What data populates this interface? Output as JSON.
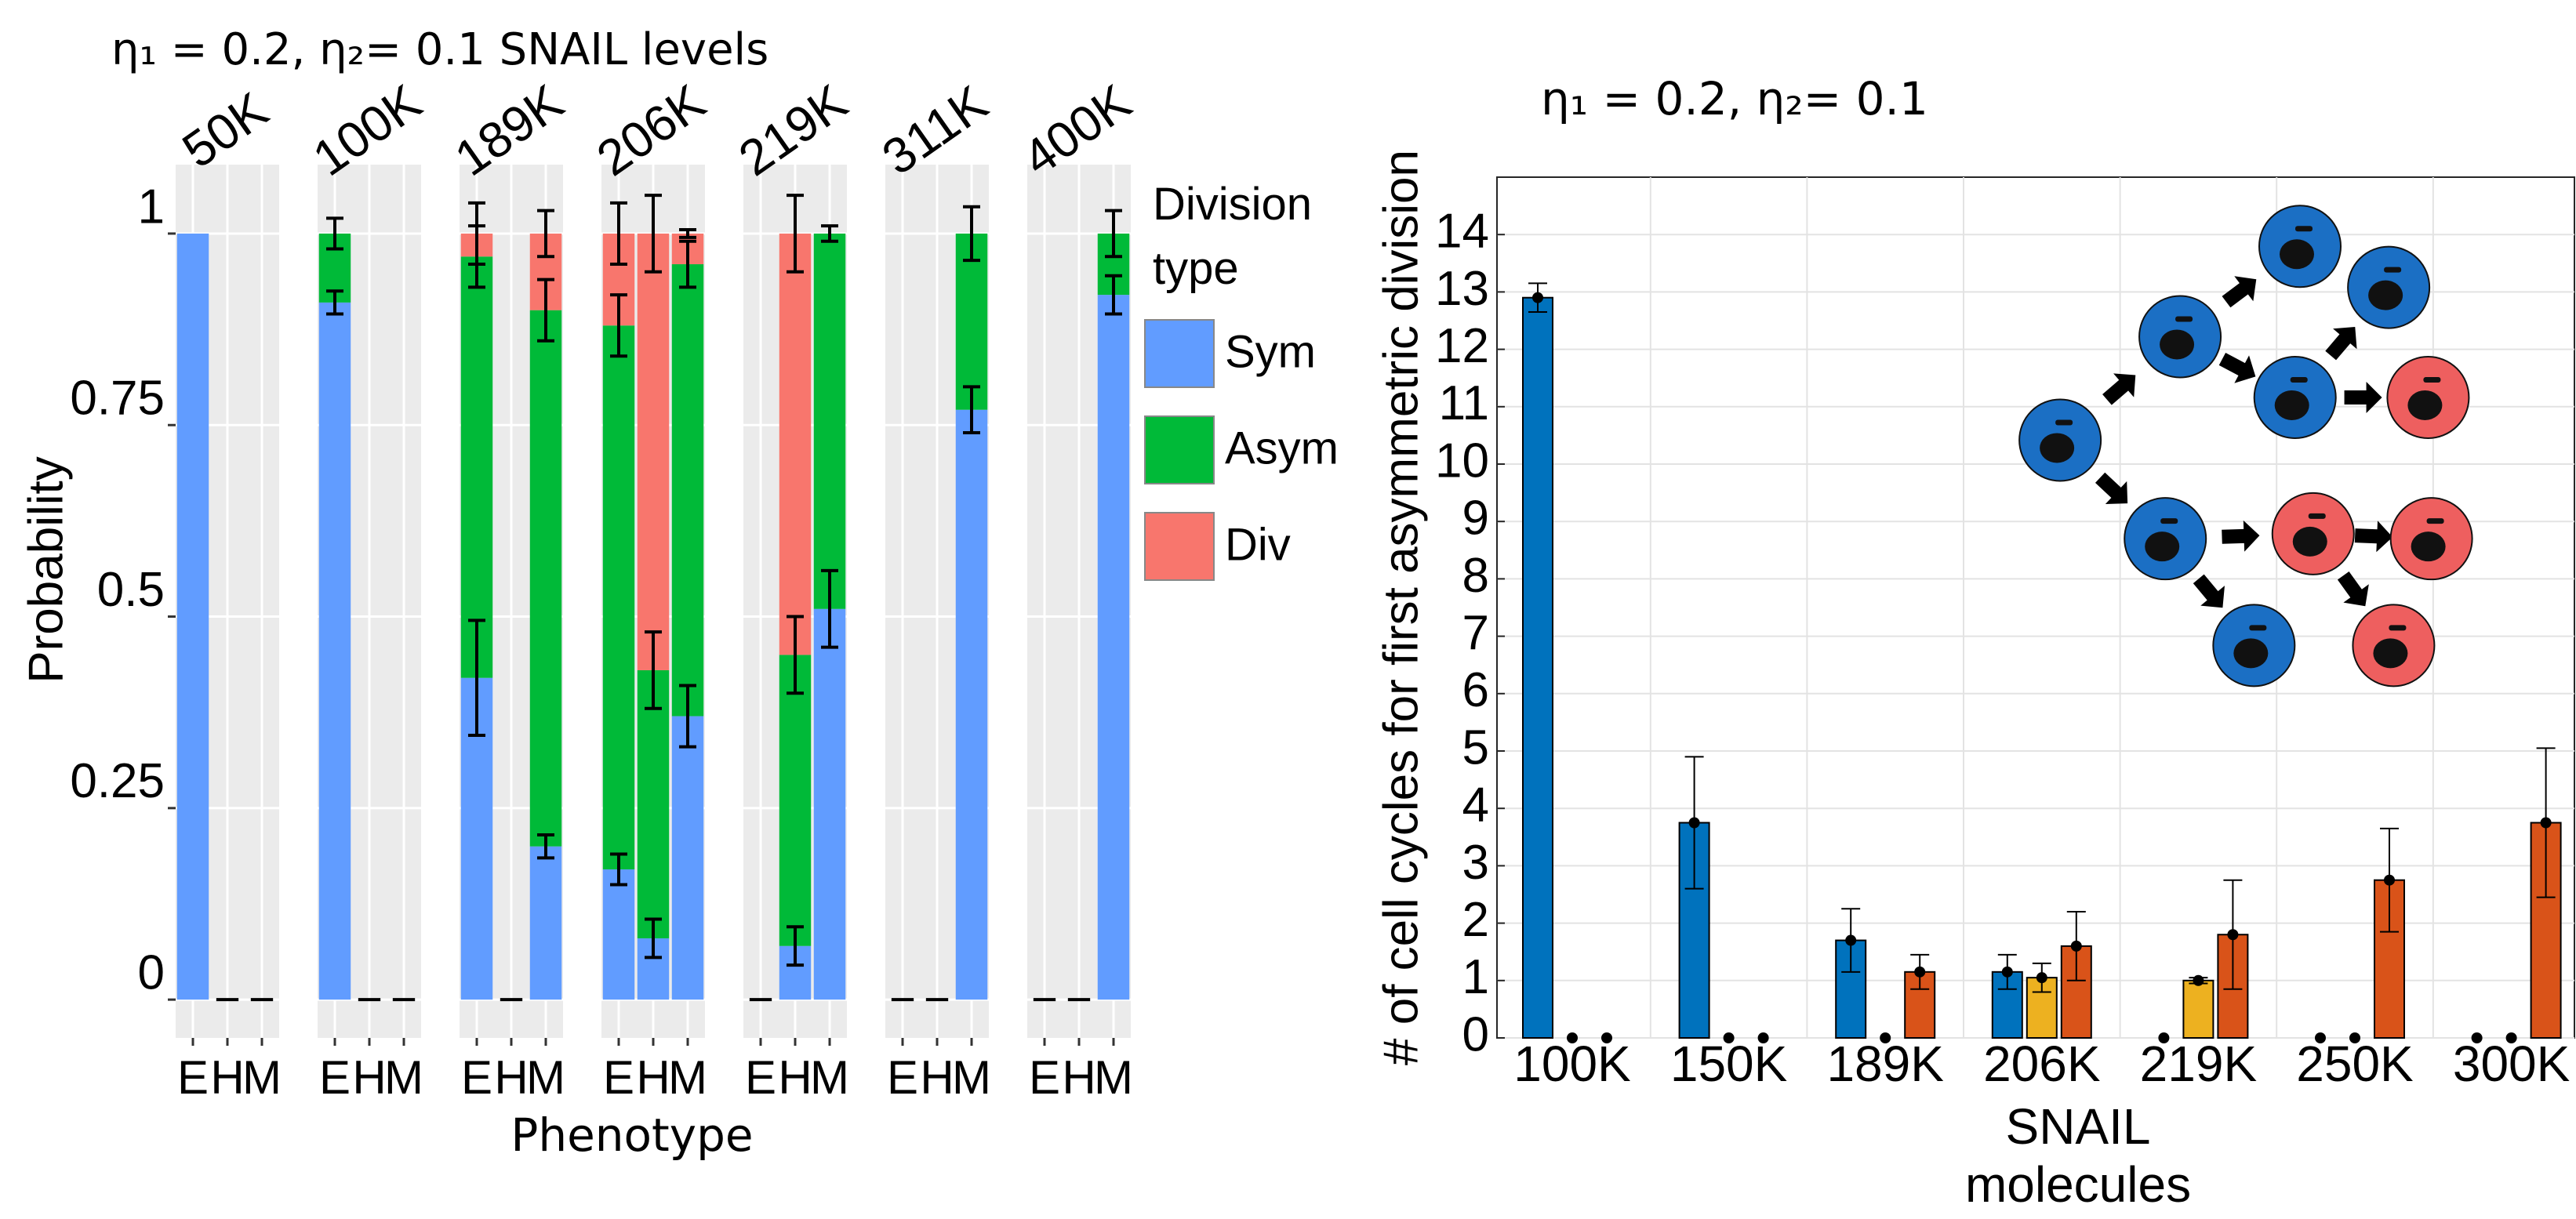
{
  "chart_data": [
    {
      "type": "stacked_bar_facets",
      "subtitle": "η₁ = 0.2, η₂= 0.1    SNAIL levels",
      "facets": [
        "50K",
        "100K",
        "189K",
        "206K",
        "219K",
        "311K",
        "400K"
      ],
      "categories": [
        "E",
        "H",
        "M"
      ],
      "xlabel": "Phenotype",
      "ylabel": "Probability",
      "legend_title": "Division type",
      "ylim": [
        -0.05,
        1.09
      ],
      "yticks": [
        0,
        0.25,
        0.5,
        0.75,
        1
      ],
      "series": [
        {
          "name": "Sym",
          "color": "#619cff",
          "values": [
            [
              1,
              0,
              0
            ],
            [
              0.91,
              0,
              0
            ],
            [
              0.42,
              0,
              0.2
            ],
            [
              0.17,
              0.08,
              0.37
            ],
            [
              0,
              0.07,
              0.51
            ],
            [
              0,
              0,
              0.77
            ],
            [
              0,
              0,
              0.92
            ]
          ],
          "errors": [
            [
              0,
              0,
              0
            ],
            [
              0.015,
              0,
              0
            ],
            [
              0.075,
              0,
              0.015
            ],
            [
              0.02,
              0.025,
              0.04
            ],
            [
              0,
              0.025,
              0.05
            ],
            [
              0,
              0,
              0.03
            ],
            [
              0,
              0,
              0.025
            ]
          ]
        },
        {
          "name": "Asym",
          "color": "#00ba38",
          "values": [
            [
              0,
              0,
              0
            ],
            [
              0.09,
              0,
              0
            ],
            [
              0.55,
              0,
              0.7
            ],
            [
              0.71,
              0.35,
              0.59
            ],
            [
              0,
              0.38,
              0.49
            ],
            [
              0,
              0,
              0.23
            ],
            [
              0,
              0,
              0.08
            ]
          ],
          "errors": [
            [
              0,
              0,
              0
            ],
            [
              0.02,
              0,
              0
            ],
            [
              0.04,
              0,
              0.04
            ],
            [
              0.04,
              0.05,
              0.03
            ],
            [
              0,
              0.05,
              0.01
            ],
            [
              0,
              0,
              0.035
            ],
            [
              0,
              0,
              0.03
            ]
          ]
        },
        {
          "name": "Div",
          "color": "#f8766d",
          "values": [
            [
              0,
              0,
              0
            ],
            [
              0,
              0,
              0
            ],
            [
              0.03,
              0,
              0.1
            ],
            [
              0.12,
              0.57,
              0.04
            ],
            [
              0,
              0.55,
              0
            ],
            [
              0,
              0,
              0
            ],
            [
              0,
              0,
              0
            ]
          ],
          "errors": [
            [
              0,
              0,
              0
            ],
            [
              0,
              0,
              0
            ],
            [
              0.04,
              0,
              0.03
            ],
            [
              0.04,
              0.05,
              0.005
            ],
            [
              0,
              0.05,
              0
            ],
            [
              0,
              0,
              0
            ],
            [
              0,
              0,
              0
            ]
          ]
        }
      ]
    },
    {
      "type": "grouped_bar",
      "annotation": "η₁ = 0.2, η₂= 0.1",
      "categories": [
        "100K",
        "150K",
        "189K",
        "206K",
        "219K",
        "250K",
        "300K"
      ],
      "xlabel": "SNAIL molecules",
      "ylabel": "# of cell cycles for first asymmetric division",
      "ylim": [
        0,
        15
      ],
      "yticks": [
        0,
        1,
        2,
        3,
        4,
        5,
        6,
        7,
        8,
        9,
        10,
        11,
        12,
        13,
        14
      ],
      "grid": true,
      "series": [
        {
          "color": "#0072bd",
          "values": [
            12.9,
            3.75,
            1.7,
            1.15,
            0,
            0,
            0
          ],
          "errors": [
            0.25,
            1.15,
            0.55,
            0.3,
            0,
            0,
            0
          ]
        },
        {
          "color": "#edb120",
          "values": [
            0,
            0,
            0,
            1.05,
            1.0,
            0,
            0
          ],
          "errors": [
            0,
            0,
            0,
            0.25,
            0.05,
            0,
            0
          ]
        },
        {
          "color": "#d95319",
          "values": [
            0,
            0,
            1.15,
            1.6,
            1.8,
            2.75,
            3.75
          ],
          "errors": [
            0,
            0,
            0.3,
            0.6,
            0.95,
            0.9,
            1.3
          ]
        }
      ]
    }
  ]
}
